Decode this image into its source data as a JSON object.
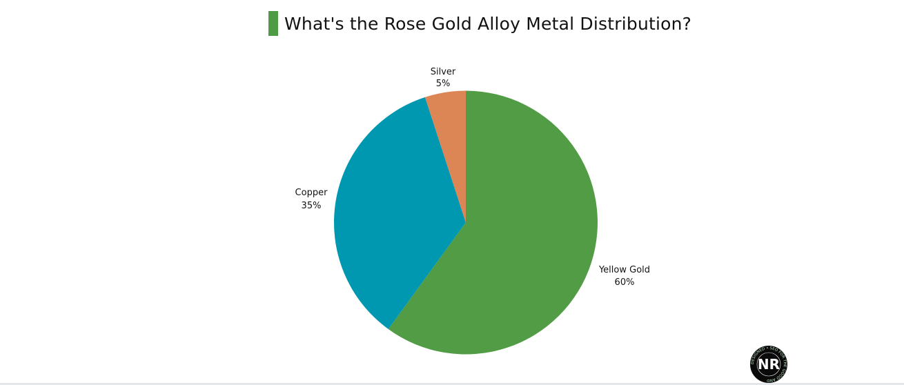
{
  "title": "What's the Rose Gold Alloy Metal Distribution?",
  "accent_color": "#4f9a44",
  "chart_data": {
    "type": "pie",
    "title": "What's the Rose Gold Alloy Metal Distribution?",
    "categories": [
      "Yellow Gold",
      "Copper",
      "Silver"
    ],
    "values": [
      60,
      35,
      5
    ],
    "unit": "%",
    "colors": [
      "#529c46",
      "#0097b1",
      "#dc8655"
    ],
    "start_angle": "top",
    "direction": "clockwise",
    "labels": [
      {
        "name": "Yellow Gold",
        "value": "60%"
      },
      {
        "name": "Copper",
        "value": "35%"
      },
      {
        "name": "Silver",
        "value": "5%"
      }
    ],
    "legend": "none"
  },
  "logo": {
    "text": "NR",
    "ring_text": "DESIGNED • SEO FOR THE GOOD AND"
  }
}
